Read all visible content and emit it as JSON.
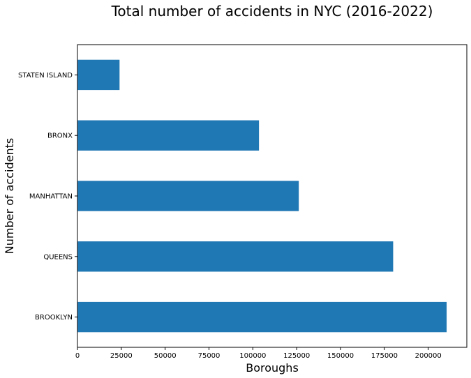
{
  "chart_data": {
    "type": "bar",
    "orientation": "horizontal",
    "title": "Total number of accidents in NYC (2016-2022)",
    "xlabel": "Boroughs",
    "ylabel": "Number of accidents",
    "categories": [
      "BROOKLYN",
      "QUEENS",
      "MANHATTAN",
      "BRONX",
      "STATEN ISLAND"
    ],
    "values": [
      210500,
      180000,
      126200,
      103500,
      24000
    ],
    "xlim": [
      0,
      222000
    ],
    "xticks": [
      0,
      25000,
      50000,
      75000,
      100000,
      125000,
      150000,
      175000,
      200000
    ],
    "bar_color": "#1f77b4",
    "grid": false,
    "legend": false
  }
}
